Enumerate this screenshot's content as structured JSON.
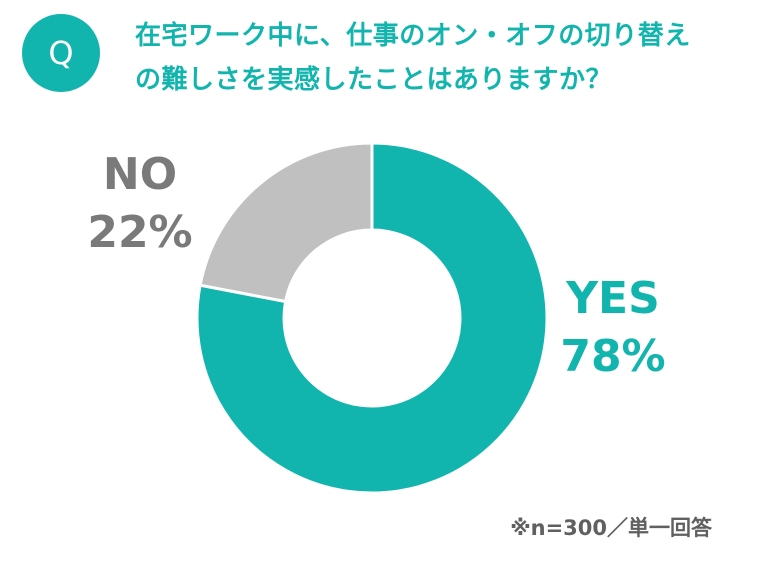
{
  "badge": "Q",
  "question": {
    "line1": "在宅ワーク中に、仕事のオン・オフの切り替え",
    "line2": "の難しさを実感したことはありますか？"
  },
  "colors": {
    "accent": "#11b5ad",
    "no_slice": "#c0c0c0",
    "no_text": "#7a7a7a",
    "footnote_text": "#606060"
  },
  "chart_data": {
    "type": "pie",
    "variant": "donut",
    "slices": [
      {
        "label": "YES",
        "value": 78,
        "display": "78%",
        "color": "#11b5ad"
      },
      {
        "label": "NO",
        "value": 22,
        "display": "22%",
        "color": "#c0c0c0"
      }
    ],
    "start": "12 o'clock",
    "direction": "clockwise"
  },
  "footnote": "※n=300／単一回答"
}
